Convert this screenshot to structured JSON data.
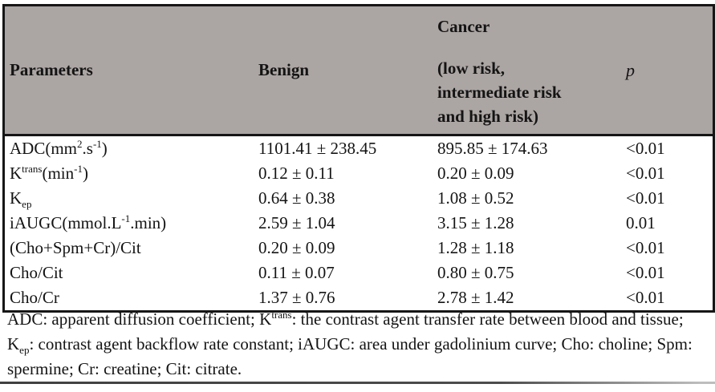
{
  "colors": {
    "header_bg": "#ABA5A3",
    "border": "#161616",
    "page_bg": "#FFFFFF",
    "text": "#141414"
  },
  "table": {
    "header": {
      "parameters": "Parameters",
      "benign": "Benign",
      "cancer_title": "Cancer",
      "cancer_sub": [
        "(low risk,",
        "intermediate risk",
        "and high risk)"
      ],
      "p": "p"
    },
    "rows": [
      {
        "param": [
          [
            "t",
            "ADC(mm"
          ],
          [
            "sup",
            "2"
          ],
          [
            "t",
            ".s"
          ],
          [
            "sup",
            "-1"
          ],
          [
            "t",
            ")"
          ]
        ],
        "benign": "1101.41 ± 238.45",
        "cancer": "895.85 ± 174.63",
        "p": "<0.01"
      },
      {
        "param": [
          [
            "t",
            "K"
          ],
          [
            "sup",
            "trans"
          ],
          [
            "t",
            "(min"
          ],
          [
            "sup",
            "-1"
          ],
          [
            "t",
            ")"
          ]
        ],
        "benign": "0.12 ± 0.11",
        "cancer": "0.20 ± 0.09",
        "p": "<0.01"
      },
      {
        "param": [
          [
            "t",
            "K"
          ],
          [
            "sub",
            "ep"
          ]
        ],
        "benign": "0.64 ± 0.38",
        "cancer": "1.08 ± 0.52",
        "p": "<0.01"
      },
      {
        "param": [
          [
            "t",
            "iAUGC(mmol.L"
          ],
          [
            "sup",
            "-1"
          ],
          [
            "t",
            ".min)"
          ]
        ],
        "benign": "2.59 ± 1.04",
        "cancer": "3.15 ± 1.28",
        "p": "0.01"
      },
      {
        "param": [
          [
            "t",
            "(Cho+Spm+Cr)/Cit"
          ]
        ],
        "benign": "0.20 ± 0.09",
        "cancer": "1.28 ± 1.18",
        "p": "<0.01"
      },
      {
        "param": [
          [
            "t",
            "Cho/Cit"
          ]
        ],
        "benign": "0.11 ± 0.07",
        "cancer": "0.80 ± 0.75",
        "p": "<0.01"
      },
      {
        "param": [
          [
            "t",
            "Cho/Cr"
          ]
        ],
        "benign": "1.37 ± 0.76",
        "cancer": "2.78 ± 1.42",
        "p": "<0.01"
      }
    ],
    "footnote": [
      [
        "t",
        "ADC: apparent diffusion coefficient; K"
      ],
      [
        "sup",
        "trans"
      ],
      [
        "t",
        ":  the contrast agent transfer rate between blood and tissue; K"
      ],
      [
        "sub",
        "ep"
      ],
      [
        "t",
        ": contrast agent backflow rate constant; iAUGC: area under gadolinium curve; Cho: choline; Spm: spermine; Cr: creatine; Cit: citrate."
      ]
    ]
  }
}
